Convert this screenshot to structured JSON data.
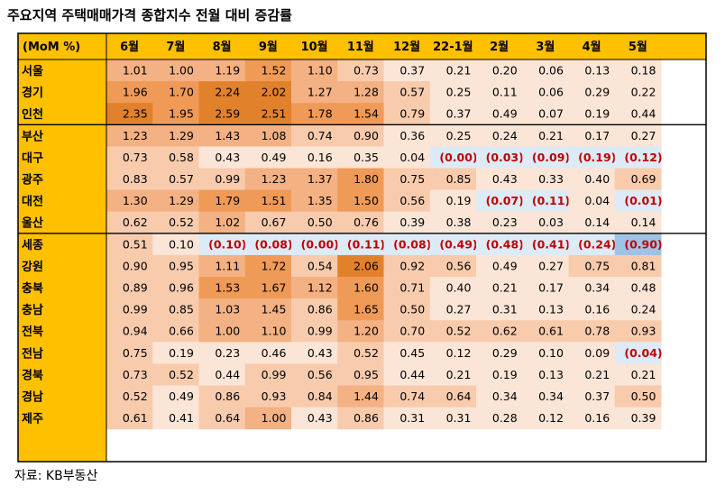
{
  "title": "주요지역 주택매매가격 종합지수 전월 대비 증감률",
  "source": "자료: KB부동산",
  "chart_data": {
    "type": "heatmap",
    "corner_label": "(MoM %)",
    "columns": [
      "6월",
      "7월",
      "8월",
      "9월",
      "10월",
      "11월",
      "12월",
      "22-1월",
      "2월",
      "3월",
      "4월",
      "5월"
    ],
    "rows": [
      {
        "region": "서울",
        "values": [
          1.01,
          1.0,
          1.19,
          1.52,
          1.1,
          0.73,
          0.37,
          0.21,
          0.2,
          0.06,
          0.13,
          0.18
        ]
      },
      {
        "region": "경기",
        "values": [
          1.96,
          1.7,
          2.24,
          2.02,
          1.27,
          1.28,
          0.57,
          0.25,
          0.11,
          0.06,
          0.29,
          0.22
        ]
      },
      {
        "region": "인천",
        "values": [
          2.35,
          1.95,
          2.59,
          2.51,
          1.78,
          1.54,
          0.79,
          0.37,
          0.49,
          0.07,
          0.19,
          0.44
        ]
      },
      {
        "region": "부산",
        "values": [
          1.23,
          1.29,
          1.43,
          1.08,
          0.74,
          0.9,
          0.36,
          0.25,
          0.24,
          0.21,
          0.17,
          0.27
        ]
      },
      {
        "region": "대구",
        "values": [
          0.73,
          0.58,
          0.43,
          0.49,
          0.16,
          0.35,
          0.04,
          -0.0,
          -0.03,
          -0.09,
          -0.19,
          -0.12
        ]
      },
      {
        "region": "광주",
        "values": [
          0.83,
          0.57,
          0.99,
          1.23,
          1.37,
          1.8,
          0.75,
          0.85,
          0.43,
          0.33,
          0.4,
          0.69
        ]
      },
      {
        "region": "대전",
        "values": [
          1.3,
          1.29,
          1.79,
          1.51,
          1.35,
          1.5,
          0.56,
          0.19,
          -0.07,
          -0.11,
          0.04,
          -0.01
        ]
      },
      {
        "region": "울산",
        "values": [
          0.62,
          0.52,
          1.02,
          0.67,
          0.5,
          0.76,
          0.39,
          0.38,
          0.23,
          0.03,
          0.14,
          0.14
        ]
      },
      {
        "region": "세종",
        "values": [
          0.51,
          0.1,
          -0.1,
          -0.08,
          -0.0,
          -0.11,
          -0.08,
          -0.49,
          -0.48,
          -0.41,
          -0.24,
          -0.9
        ]
      },
      {
        "region": "강원",
        "values": [
          0.9,
          0.95,
          1.11,
          1.72,
          0.54,
          2.06,
          0.92,
          0.56,
          0.49,
          0.27,
          0.75,
          0.81
        ]
      },
      {
        "region": "충북",
        "values": [
          0.89,
          0.96,
          1.53,
          1.67,
          1.12,
          1.6,
          0.71,
          0.4,
          0.21,
          0.17,
          0.34,
          0.48
        ]
      },
      {
        "region": "충남",
        "values": [
          0.99,
          0.85,
          1.03,
          1.45,
          0.86,
          1.65,
          0.5,
          0.27,
          0.31,
          0.13,
          0.16,
          0.24
        ]
      },
      {
        "region": "전북",
        "values": [
          0.94,
          0.66,
          1.0,
          1.1,
          0.99,
          1.2,
          0.7,
          0.52,
          0.62,
          0.61,
          0.78,
          0.93
        ]
      },
      {
        "region": "전남",
        "values": [
          0.75,
          0.19,
          0.23,
          0.46,
          0.43,
          0.52,
          0.45,
          0.12,
          0.29,
          0.1,
          0.09,
          -0.04
        ]
      },
      {
        "region": "경북",
        "values": [
          0.73,
          0.52,
          0.44,
          0.99,
          0.56,
          0.95,
          0.44,
          0.21,
          0.19,
          0.13,
          0.21,
          0.21
        ]
      },
      {
        "region": "경남",
        "values": [
          0.52,
          0.49,
          0.86,
          0.93,
          0.84,
          1.44,
          0.74,
          0.64,
          0.34,
          0.34,
          0.37,
          0.5
        ]
      },
      {
        "region": "제주",
        "values": [
          0.61,
          0.41,
          0.64,
          1.0,
          0.43,
          0.86,
          0.31,
          0.31,
          0.28,
          0.12,
          0.16,
          0.39
        ]
      }
    ],
    "group_breaks_after_row": [
      2,
      7
    ],
    "negative_format": "parentheses",
    "colors": {
      "header_bg": "#FFC000",
      "negative_text": "#C00000",
      "scale": [
        "#FBE5D6",
        "#F8CBAD",
        "#F4B183",
        "#F09A57",
        "#E2812C"
      ],
      "neg_fill": "#DDEBF7",
      "neg_strong_fill": "#9DC3E6"
    }
  }
}
